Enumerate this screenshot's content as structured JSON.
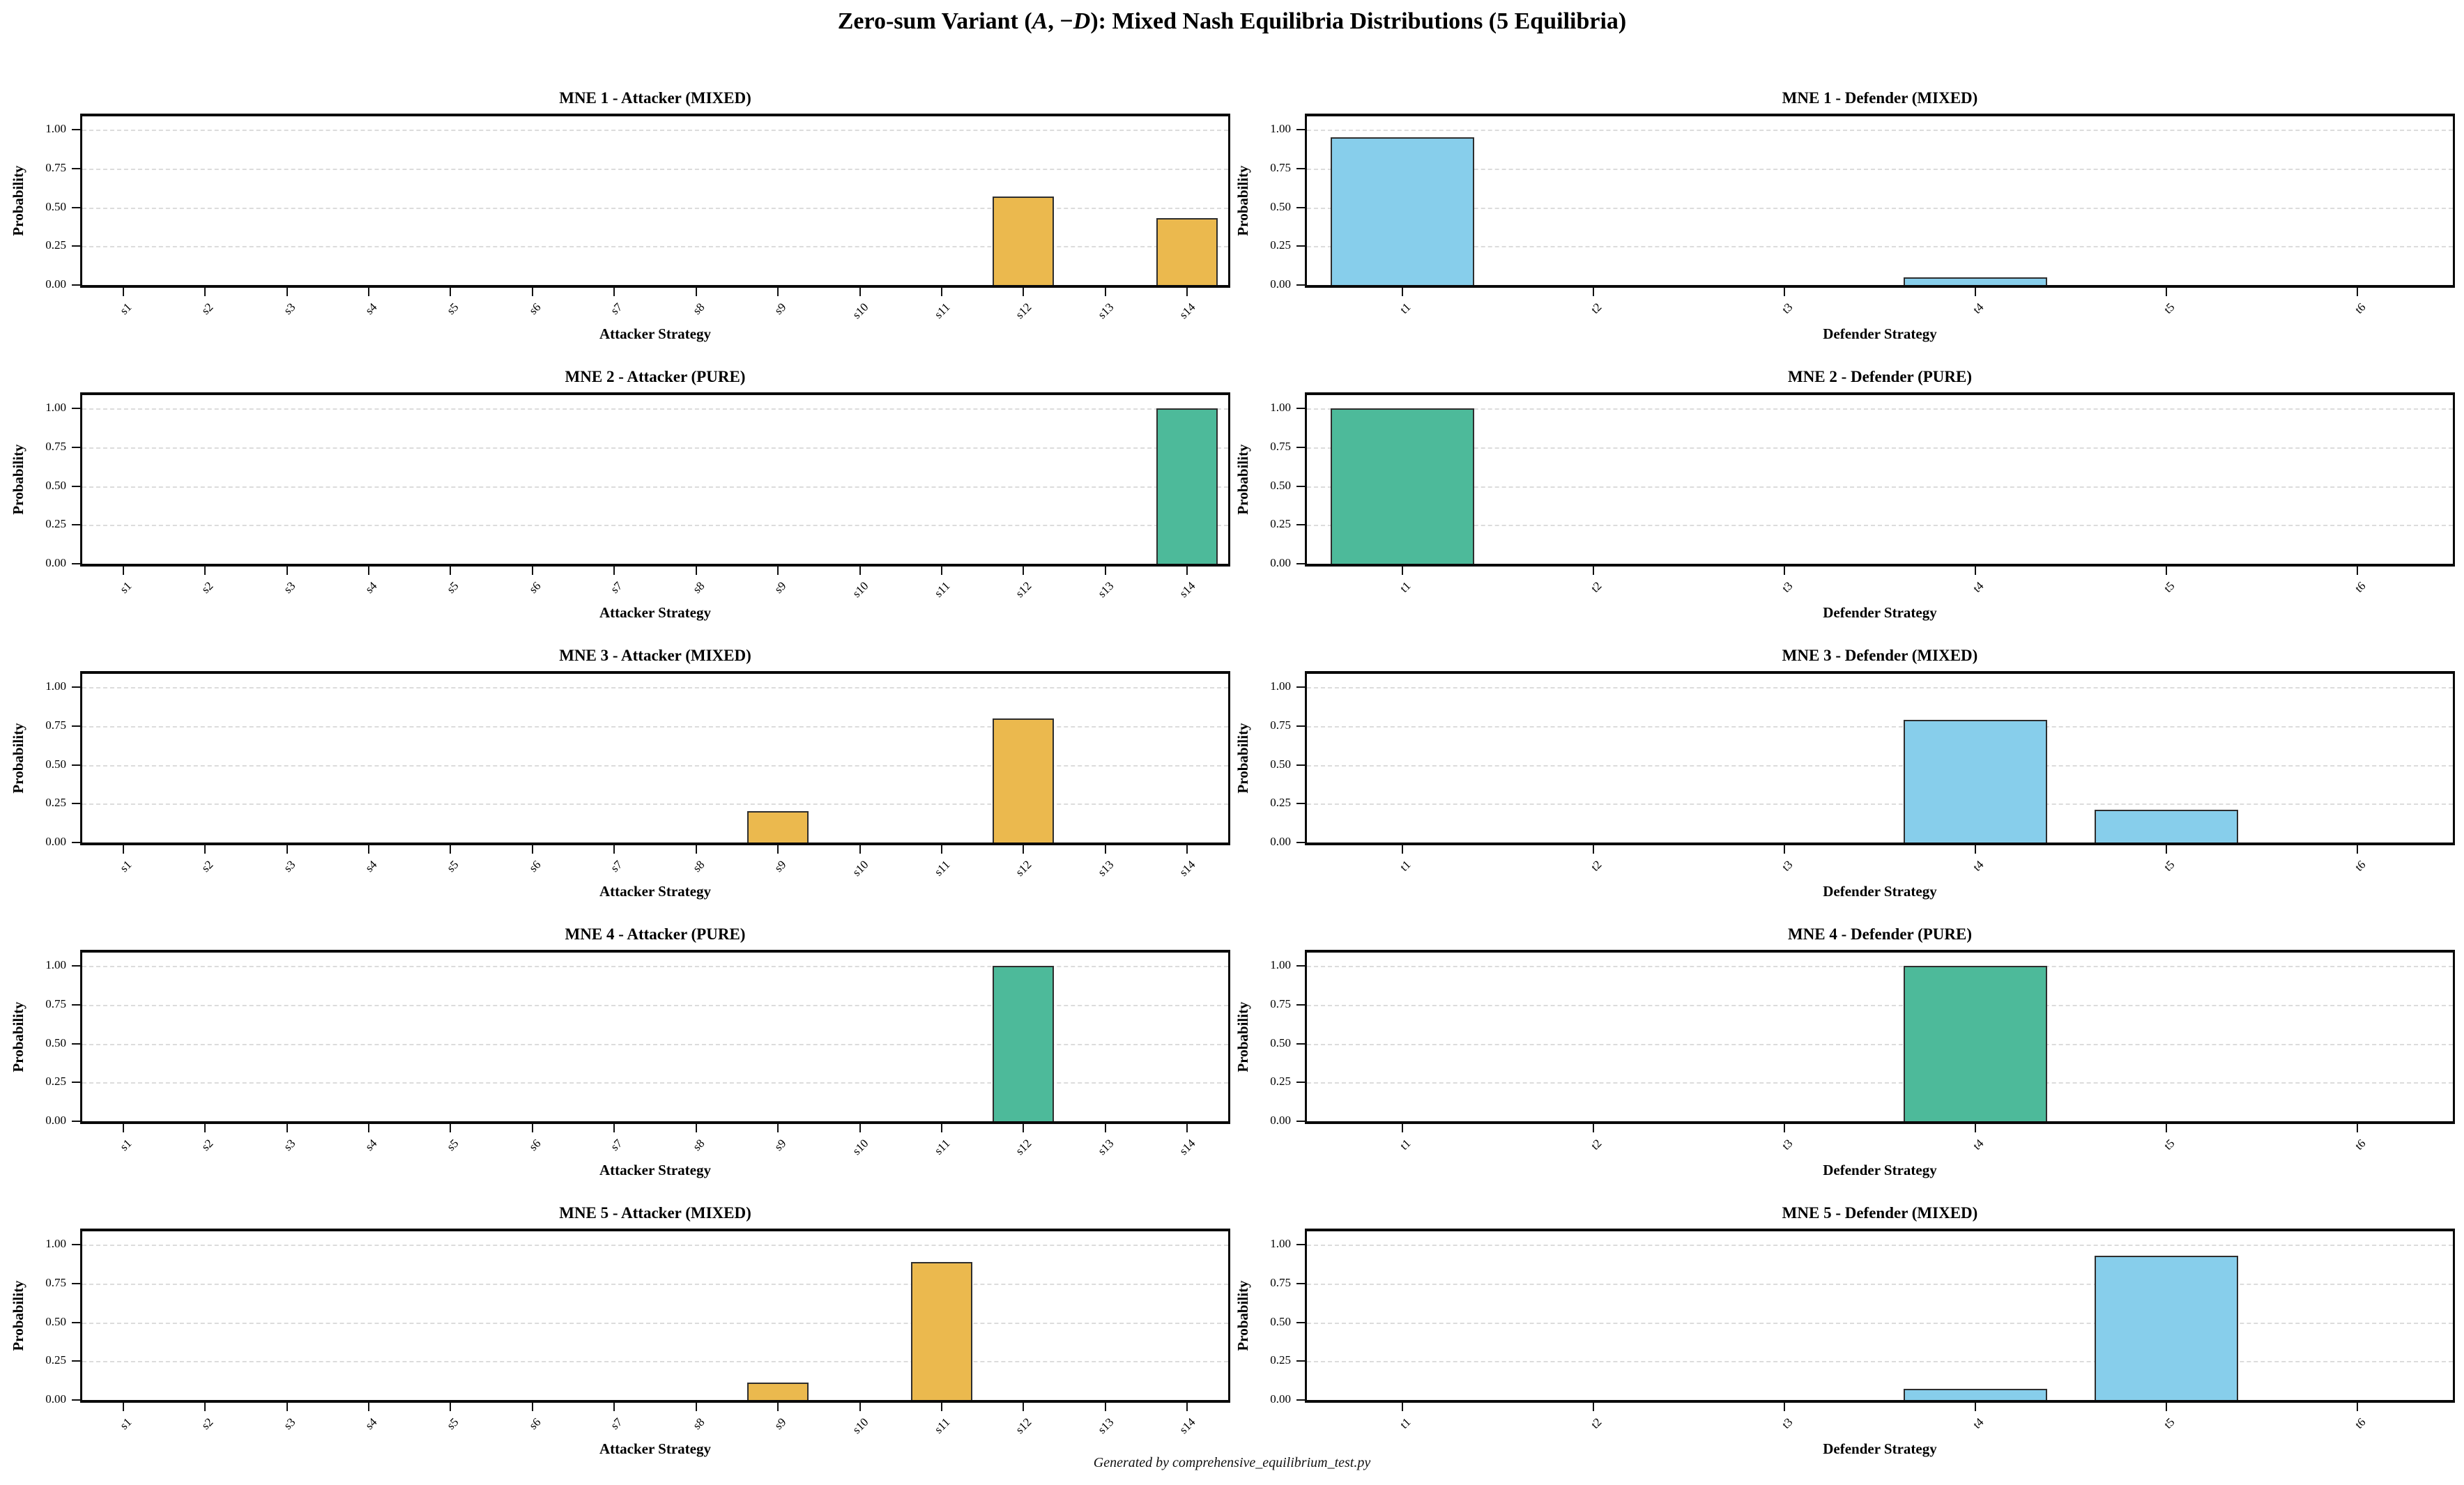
{
  "figure": {
    "title_plain": "Zero-sum Variant (A, −D): Mixed Nash Equilibria Distributions (5 Equilibria)",
    "title_parts": [
      {
        "text": "Zero-sum Variant (",
        "italic": false
      },
      {
        "text": "A",
        "italic": true
      },
      {
        "text": ", −",
        "italic": false
      },
      {
        "text": "D",
        "italic": true
      },
      {
        "text": "): Mixed Nash Equilibria Distributions (5 Equilibria)",
        "italic": false
      }
    ],
    "footer": "Generated by comprehensive_equilibrium_test.py",
    "background": "#ffffff"
  },
  "colors": {
    "mixed_attacker_bar": "#EBB94E",
    "mixed_defender_bar": "#87CEEB",
    "pure_bar": "#4DBA9A",
    "bar_edge": "#2e2e2e",
    "grid": "#dcdcdc",
    "spine": "#0a0a0a"
  },
  "axis": {
    "ylabel": "Probability",
    "ytick_values": [
      0.0,
      0.25,
      0.5,
      0.75,
      1.0
    ],
    "ylim": [
      0,
      1.09
    ],
    "attacker_xlabel": "Attacker Strategy",
    "defender_xlabel": "Defender Strategy",
    "attacker_categories": [
      "s1",
      "s2",
      "s3",
      "s4",
      "s5",
      "s6",
      "s7",
      "s8",
      "s9",
      "s10",
      "s11",
      "s12",
      "s13",
      "s14"
    ],
    "defender_categories": [
      "t1",
      "t2",
      "t3",
      "t4",
      "t5",
      "t6"
    ]
  },
  "chart_data": [
    {
      "id": "mne1-attacker",
      "row": 0,
      "col": 0,
      "type": "bar",
      "player": "attacker",
      "mode": "MIXED",
      "title": "MNE 1 - Attacker (MIXED)",
      "xlabel": "Attacker Strategy",
      "ylabel": "Probability",
      "categories": [
        "s1",
        "s2",
        "s3",
        "s4",
        "s5",
        "s6",
        "s7",
        "s8",
        "s9",
        "s10",
        "s11",
        "s12",
        "s13",
        "s14"
      ],
      "values": [
        0,
        0,
        0,
        0,
        0,
        0,
        0,
        0,
        0,
        0,
        0,
        0.57,
        0,
        0.43
      ],
      "color": "#EBB94E",
      "ylim": [
        0,
        1.09
      ],
      "grid": true
    },
    {
      "id": "mne1-defender",
      "row": 0,
      "col": 1,
      "type": "bar",
      "player": "defender",
      "mode": "MIXED",
      "title": "MNE 1 - Defender (MIXED)",
      "xlabel": "Defender Strategy",
      "ylabel": "Probability",
      "categories": [
        "t1",
        "t2",
        "t3",
        "t4",
        "t5",
        "t6"
      ],
      "values": [
        0.95,
        0,
        0,
        0.05,
        0,
        0
      ],
      "color": "#87CEEB",
      "ylim": [
        0,
        1.09
      ],
      "grid": true
    },
    {
      "id": "mne2-attacker",
      "row": 1,
      "col": 0,
      "type": "bar",
      "player": "attacker",
      "mode": "PURE",
      "title": "MNE 2 - Attacker (PURE)",
      "xlabel": "Attacker Strategy",
      "ylabel": "Probability",
      "categories": [
        "s1",
        "s2",
        "s3",
        "s4",
        "s5",
        "s6",
        "s7",
        "s8",
        "s9",
        "s10",
        "s11",
        "s12",
        "s13",
        "s14"
      ],
      "values": [
        0,
        0,
        0,
        0,
        0,
        0,
        0,
        0,
        0,
        0,
        0,
        0,
        0,
        1.0
      ],
      "color": "#4DBA9A",
      "ylim": [
        0,
        1.09
      ],
      "grid": true
    },
    {
      "id": "mne2-defender",
      "row": 1,
      "col": 1,
      "type": "bar",
      "player": "defender",
      "mode": "PURE",
      "title": "MNE 2 - Defender (PURE)",
      "xlabel": "Defender Strategy",
      "ylabel": "Probability",
      "categories": [
        "t1",
        "t2",
        "t3",
        "t4",
        "t5",
        "t6"
      ],
      "values": [
        1.0,
        0,
        0,
        0,
        0,
        0
      ],
      "color": "#4DBA9A",
      "ylim": [
        0,
        1.09
      ],
      "grid": true
    },
    {
      "id": "mne3-attacker",
      "row": 2,
      "col": 0,
      "type": "bar",
      "player": "attacker",
      "mode": "MIXED",
      "title": "MNE 3 - Attacker (MIXED)",
      "xlabel": "Attacker Strategy",
      "ylabel": "Probability",
      "categories": [
        "s1",
        "s2",
        "s3",
        "s4",
        "s5",
        "s6",
        "s7",
        "s8",
        "s9",
        "s10",
        "s11",
        "s12",
        "s13",
        "s14"
      ],
      "values": [
        0,
        0,
        0,
        0,
        0,
        0,
        0,
        0,
        0.2,
        0,
        0,
        0.8,
        0,
        0
      ],
      "color": "#EBB94E",
      "ylim": [
        0,
        1.09
      ],
      "grid": true
    },
    {
      "id": "mne3-defender",
      "row": 2,
      "col": 1,
      "type": "bar",
      "player": "defender",
      "mode": "MIXED",
      "title": "MNE 3 - Defender (MIXED)",
      "xlabel": "Defender Strategy",
      "ylabel": "Probability",
      "categories": [
        "t1",
        "t2",
        "t3",
        "t4",
        "t5",
        "t6"
      ],
      "values": [
        0,
        0,
        0,
        0.79,
        0.21,
        0
      ],
      "color": "#87CEEB",
      "ylim": [
        0,
        1.09
      ],
      "grid": true
    },
    {
      "id": "mne4-attacker",
      "row": 3,
      "col": 0,
      "type": "bar",
      "player": "attacker",
      "mode": "PURE",
      "title": "MNE 4 - Attacker (PURE)",
      "xlabel": "Attacker Strategy",
      "ylabel": "Probability",
      "categories": [
        "s1",
        "s2",
        "s3",
        "s4",
        "s5",
        "s6",
        "s7",
        "s8",
        "s9",
        "s10",
        "s11",
        "s12",
        "s13",
        "s14"
      ],
      "values": [
        0,
        0,
        0,
        0,
        0,
        0,
        0,
        0,
        0,
        0,
        0,
        1.0,
        0,
        0
      ],
      "color": "#4DBA9A",
      "ylim": [
        0,
        1.09
      ],
      "grid": true
    },
    {
      "id": "mne4-defender",
      "row": 3,
      "col": 1,
      "type": "bar",
      "player": "defender",
      "mode": "PURE",
      "title": "MNE 4 - Defender (PURE)",
      "xlabel": "Defender Strategy",
      "ylabel": "Probability",
      "categories": [
        "t1",
        "t2",
        "t3",
        "t4",
        "t5",
        "t6"
      ],
      "values": [
        0,
        0,
        0,
        1.0,
        0,
        0
      ],
      "color": "#4DBA9A",
      "ylim": [
        0,
        1.09
      ],
      "grid": true
    },
    {
      "id": "mne5-attacker",
      "row": 4,
      "col": 0,
      "type": "bar",
      "player": "attacker",
      "mode": "MIXED",
      "title": "MNE 5 - Attacker (MIXED)",
      "xlabel": "Attacker Strategy",
      "ylabel": "Probability",
      "categories": [
        "s1",
        "s2",
        "s3",
        "s4",
        "s5",
        "s6",
        "s7",
        "s8",
        "s9",
        "s10",
        "s11",
        "s12",
        "s13",
        "s14"
      ],
      "values": [
        0,
        0,
        0,
        0,
        0,
        0,
        0,
        0,
        0.11,
        0,
        0.89,
        0,
        0,
        0
      ],
      "color": "#EBB94E",
      "ylim": [
        0,
        1.09
      ],
      "grid": true
    },
    {
      "id": "mne5-defender",
      "row": 4,
      "col": 1,
      "type": "bar",
      "player": "defender",
      "mode": "MIXED",
      "title": "MNE 5 - Defender (MIXED)",
      "xlabel": "Defender Strategy",
      "ylabel": "Probability",
      "categories": [
        "t1",
        "t2",
        "t3",
        "t4",
        "t5",
        "t6"
      ],
      "values": [
        0,
        0,
        0,
        0.07,
        0.93,
        0
      ],
      "color": "#87CEEB",
      "ylim": [
        0,
        1.09
      ],
      "grid": true
    }
  ]
}
